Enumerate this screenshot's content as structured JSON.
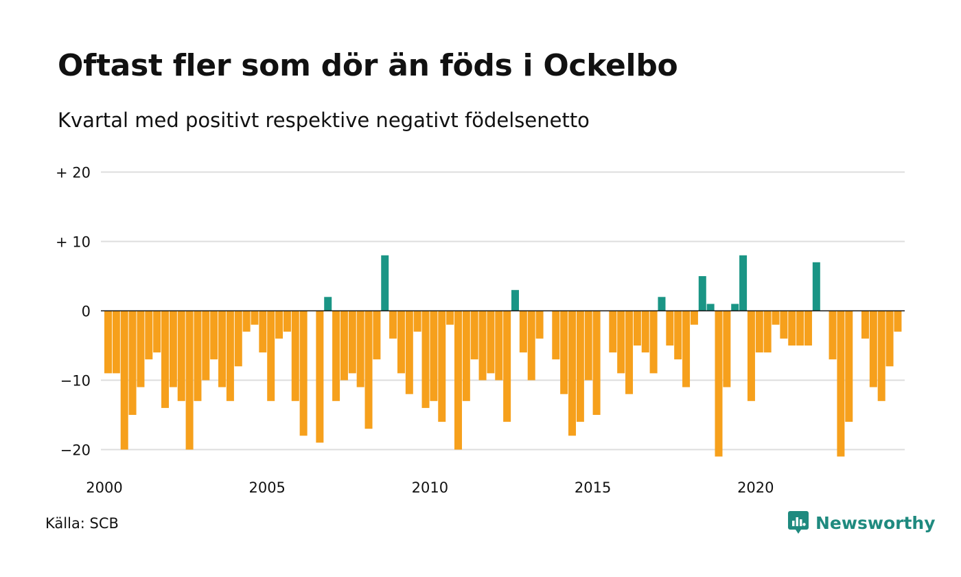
{
  "title": "Oftast fler som dör än föds i Ockelbo",
  "subtitle": "Kvartal med positivt respektive negativt födelsenetto",
  "source": "Källa: SCB",
  "brand": {
    "name": "Newsworthy",
    "icon": "newsworthy-logo-icon",
    "color": "#1f8a7f"
  },
  "chart_data": {
    "type": "bar",
    "colors": {
      "positive": "#1a9585",
      "negative": "#f6a01c",
      "grid": "#dddddd",
      "zero_line": "#111111"
    },
    "ylim": [
      -23,
      21
    ],
    "y_ticks": [
      {
        "value": 20,
        "label": "+ 20"
      },
      {
        "value": 10,
        "label": "+ 10"
      },
      {
        "value": 0,
        "label": "0"
      },
      {
        "value": -10,
        "label": "−10"
      },
      {
        "value": -20,
        "label": "−20"
      }
    ],
    "x_ticks": [
      {
        "value": 2000,
        "label": "2000"
      },
      {
        "value": 2005,
        "label": "2005"
      },
      {
        "value": 2010,
        "label": "2010"
      },
      {
        "value": 2015,
        "label": "2015"
      },
      {
        "value": 2020,
        "label": "2020"
      }
    ],
    "x_start": 2000,
    "quarters_per_year": 4,
    "grid": true,
    "values": [
      -9,
      -9,
      -20,
      -15,
      -11,
      -7,
      -6,
      -14,
      -11,
      -13,
      -20,
      -13,
      -10,
      -7,
      -11,
      -13,
      -8,
      -3,
      -2,
      -6,
      -13,
      -4,
      -3,
      -13,
      -18,
      0,
      -19,
      2,
      -13,
      -10,
      -9,
      -11,
      -17,
      -7,
      8,
      -4,
      -9,
      -12,
      -3,
      -14,
      -13,
      -16,
      -2,
      -20,
      -13,
      -7,
      -10,
      -9,
      -10,
      -16,
      3,
      -6,
      -10,
      -4,
      0,
      -7,
      -12,
      -18,
      -16,
      -10,
      -15,
      0,
      -6,
      -9,
      -12,
      -5,
      -6,
      -9,
      2,
      -5,
      -7,
      -11,
      -2,
      5,
      1,
      -21,
      -11,
      1,
      8,
      -13,
      -6,
      -6,
      -2,
      -4,
      -5,
      -5,
      -5,
      7,
      0,
      -7,
      -21,
      -16,
      0,
      -4,
      -11,
      -13,
      -8,
      -3
    ]
  }
}
